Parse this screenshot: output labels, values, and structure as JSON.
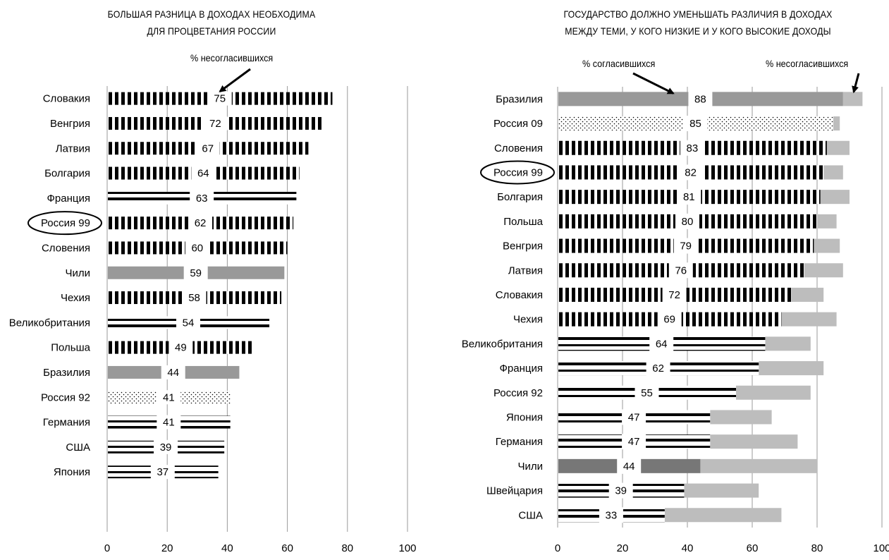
{
  "chart_data": [
    {
      "type": "bar",
      "title": "БОЛЬШАЯ РАЗНИЦА В ДОХОДАХ НЕОБХОДИМА ДЛЯ ПРОЦВЕТАНИЯ РОССИИ",
      "title_line1": "БОЛЬШАЯ РАЗНИЦА В ДОХОДАХ НЕОБХОДИМА",
      "title_line2": "ДЛЯ ПРОЦВЕТАНИЯ РОССИИ",
      "annotation": "% несогласившихся",
      "xlim": [
        0,
        100
      ],
      "xticks": [
        0,
        20,
        40,
        60,
        80,
        100
      ],
      "grid": true,
      "highlighted_category": "Россия 99",
      "categories": [
        "Словакия",
        "Венгрия",
        "Латвия",
        "Болгария",
        "Франция",
        "Россия 99",
        "Словения",
        "Чили",
        "Чехия",
        "Великобритания",
        "Польша",
        "Бразилия",
        "Россия 92",
        "Германия",
        "США",
        "Япония"
      ],
      "series": [
        {
          "values": [
            75,
            72,
            67,
            64,
            63,
            62,
            60,
            59,
            58,
            54,
            49,
            44,
            41,
            41,
            39,
            37
          ]
        }
      ],
      "patterns": [
        "vstripe",
        "vstripe",
        "vstripe",
        "vstripe",
        "hstripe",
        "vstripe",
        "vstripe",
        "gray",
        "vstripe",
        "hstripe",
        "vstripe",
        "gray",
        "dots",
        "hstripe",
        "hstripe",
        "hstripe"
      ]
    },
    {
      "type": "bar",
      "title": "ГОСУДАРСТВО ДОЛЖНО УМЕНЬШАТЬ РАЗЛИЧИЯ В ДОХОДАХ МЕЖДУ ТЕМИ, У КОГО НИЗКИЕ И У КОГО ВЫСОКИЕ ДОХОДЫ",
      "title_line1": "ГОСУДАРСТВО ДОЛЖНО УМЕНЬШАТЬ РАЗЛИЧИЯ В ДОХОДАХ",
      "title_line2": "МЕЖДУ ТЕМИ, У КОГО НИЗКИЕ И У КОГО ВЫСОКИЕ ДОХОДЫ",
      "annotation_agree": "% согласившихся",
      "annotation_disagree": "% несогласившихся",
      "xlim": [
        0,
        100
      ],
      "xticks": [
        0,
        20,
        40,
        60,
        80,
        100
      ],
      "grid": true,
      "highlighted_category": "Россия 99",
      "categories": [
        "Бразилия",
        "Россия 09",
        "Словения",
        "Россия 99",
        "Болгария",
        "Польша",
        "Венгрия",
        "Латвия",
        "Словакия",
        "Чехия",
        "Великобритания",
        "Франция",
        "Россия 92",
        "Япония",
        "Германия",
        "Чили",
        "Швейцария",
        "США"
      ],
      "series": [
        {
          "name": "% согласившихся",
          "values": [
            88,
            85,
            83,
            82,
            81,
            80,
            79,
            76,
            72,
            69,
            64,
            62,
            55,
            47,
            47,
            44,
            39,
            33
          ]
        },
        {
          "name": "% несогласившихся",
          "values": [
            6,
            2,
            7,
            6,
            9,
            6,
            8,
            12,
            10,
            17,
            14,
            20,
            23,
            19,
            27,
            36,
            23,
            36
          ]
        }
      ],
      "patterns": [
        "gray",
        "dots",
        "vstripe",
        "vstripe",
        "vstripe",
        "vstripe",
        "vstripe",
        "vstripe",
        "vstripe",
        "vstripe",
        "hstripe",
        "hstripe",
        "hstripe",
        "hstripe",
        "hstripe",
        "darkgray",
        "hstripe",
        "hstripe"
      ]
    }
  ]
}
